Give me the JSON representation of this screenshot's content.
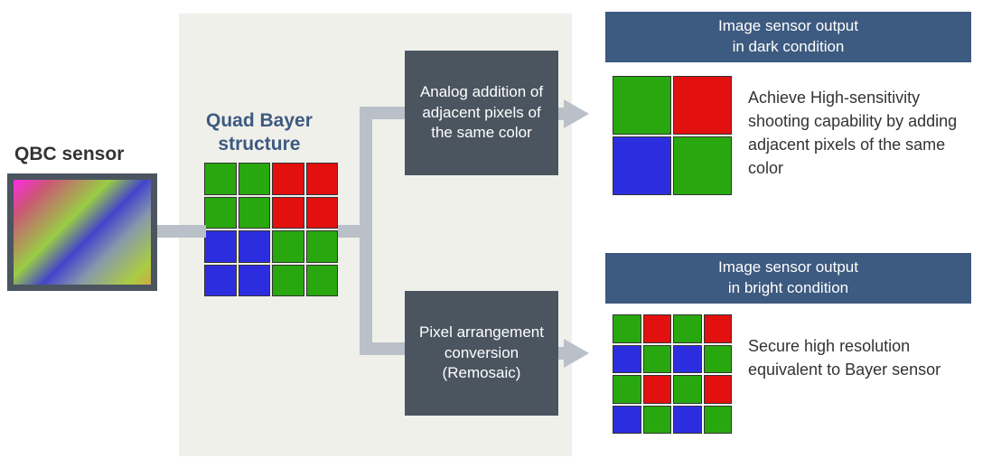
{
  "qbc": {
    "label": "QBC sensor",
    "frame_color": "#4a5560"
  },
  "quad_bayer": {
    "label": "Quad Bayer\nstructure",
    "grid": {
      "size": 4,
      "colors": [
        [
          "g",
          "g",
          "r",
          "r"
        ],
        [
          "g",
          "g",
          "r",
          "r"
        ],
        [
          "b",
          "b",
          "g",
          "g"
        ],
        [
          "b",
          "b",
          "g",
          "g"
        ]
      ],
      "color_map": {
        "g": "#28a80e",
        "r": "#e31010",
        "b": "#2d2de0"
      }
    }
  },
  "process": {
    "top": "Analog addition of adjacent pixels of the same color",
    "bottom": "Pixel arrangement conversion (Remosaic)",
    "box_bg": "#4a5560",
    "box_text_color": "#ffffff"
  },
  "output": {
    "header_bg": "#3d5a80",
    "header_text_color": "#ffffff",
    "top": {
      "header": "Image sensor output\nin dark condition",
      "grid": {
        "size": 2,
        "colors": [
          [
            "g",
            "r"
          ],
          [
            "b",
            "g"
          ]
        ]
      },
      "description": "Achieve High-sensitivity shooting capability by adding adjacent pixels of the same color"
    },
    "bottom": {
      "header": "Image sensor output\nin bright condition",
      "grid": {
        "size": 4,
        "colors": [
          [
            "g",
            "r",
            "g",
            "r"
          ],
          [
            "b",
            "g",
            "b",
            "g"
          ],
          [
            "g",
            "r",
            "g",
            "r"
          ],
          [
            "b",
            "g",
            "b",
            "g"
          ]
        ]
      },
      "description": "Secure high resolution equivalent to Bayer sensor"
    }
  },
  "connectors": {
    "color": "#b9c0c8"
  },
  "panel_bg": "#f0f0ea"
}
